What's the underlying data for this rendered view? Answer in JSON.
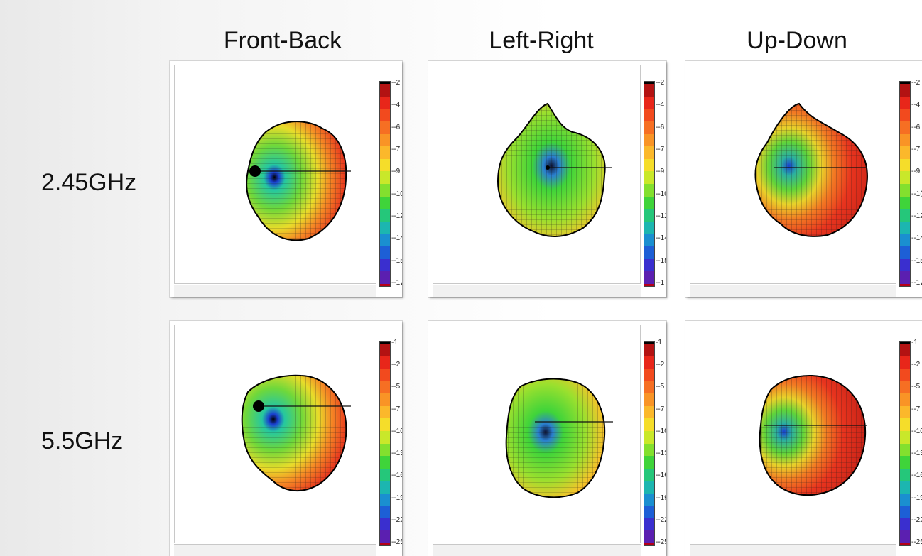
{
  "columns": [
    "Front-Back",
    "Left-Right",
    "Up-Down"
  ],
  "rows": [
    {
      "label": "2.45GHz",
      "colorbar_ticks": [
        "-2",
        "-4",
        "-6",
        "-7",
        "-9",
        "-10",
        "-12",
        "-14",
        "-15",
        "-17"
      ],
      "visible_tick_text": [
        [
          "-2",
          "-4",
          "-6",
          "-7",
          "-9",
          "-10",
          "-12",
          "-14",
          "-15",
          "-17"
        ],
        [
          "-2",
          "-4",
          "-6",
          "-7",
          "-9",
          "-10",
          "-12",
          "-14",
          "-15",
          "-17"
        ],
        [
          "-2",
          "-4",
          "-6",
          "-7",
          "-9",
          "-1(",
          "-12",
          "-14",
          "-15",
          "-17"
        ]
      ]
    },
    {
      "label": "5.5GHz",
      "colorbar_ticks": [
        "1",
        "-2",
        "-5",
        "-7",
        "-10",
        "-13",
        "-16",
        "-19",
        "-22",
        "-25"
      ],
      "visible_tick_text": [
        [
          "1",
          "-2",
          "-5",
          "-7",
          "-10",
          "-13",
          "-16",
          "-19",
          "-22",
          "-25"
        ],
        [
          "1",
          "-2",
          "-5",
          "-7",
          "-10",
          "-13",
          "-16",
          "-19",
          "-22",
          "-25"
        ],
        [
          "1",
          "-2",
          "-5",
          "-7",
          "-10",
          "-13",
          "-16",
          "-19",
          "-22",
          "-25"
        ]
      ]
    }
  ],
  "colorbar_colors": [
    "#000000",
    "#b31212",
    "#e8261a",
    "#f24a1e",
    "#f66f23",
    "#f99426",
    "#fbb82b",
    "#f5dd2a",
    "#c9e82a",
    "#83e02e",
    "#3fd43a",
    "#25c77a",
    "#1cb6b0",
    "#1a8fd0",
    "#1d5fd6",
    "#3a2fcf",
    "#5b1fb0",
    "#b5001a"
  ]
}
